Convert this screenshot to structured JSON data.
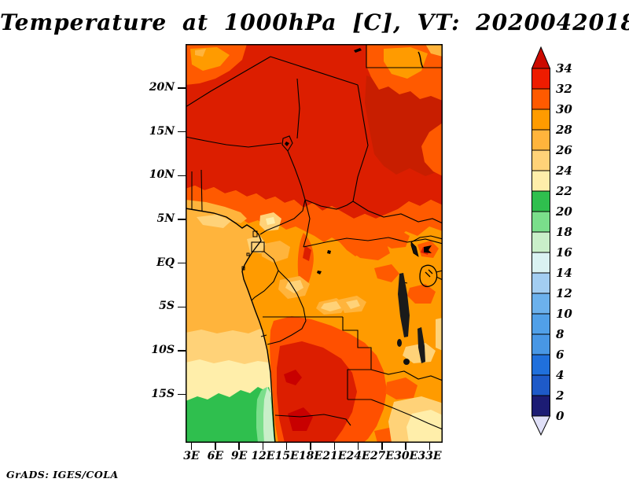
{
  "title": "Temperature at 1000hPa [C], VT: 2020042018",
  "attribution": "GrADS: IGES/COLA",
  "map": {
    "x_axis": {
      "tick_labels": [
        "3E",
        "6E",
        "9E",
        "12E",
        "15E",
        "18E",
        "21E",
        "24E",
        "27E",
        "30E",
        "33E"
      ]
    },
    "y_axis": {
      "tick_labels": [
        "20N",
        "15N",
        "10N",
        "5N",
        "EQ",
        "5S",
        "10S",
        "15S"
      ]
    }
  },
  "colorbar": {
    "labels_top_to_bottom": [
      "34",
      "32",
      "30",
      "28",
      "26",
      "24",
      "22",
      "20",
      "18",
      "16",
      "14",
      "12",
      "10",
      "8",
      "6",
      "4",
      "2",
      "0"
    ],
    "over_color": "#cc0a00",
    "under_color": "#e0e0f8",
    "box_colors_top_to_bottom": [
      "#ee1c00",
      "#ff5a00",
      "#ff9b00",
      "#ffb43c",
      "#ffd278",
      "#ffeeaa",
      "#2fbf4e",
      "#7ade8b",
      "#c9efc9",
      "#daf2f2",
      "#a3cdf1",
      "#6cb1ec",
      "#51a0e8",
      "#4897e5",
      "#2070dc",
      "#1e5ac8",
      "#1c1c74"
    ]
  },
  "chart_data": {
    "type": "heatmap",
    "title": "Temperature at 1000hPa [C], VT: 2020042018",
    "variable": "Temperature at 1000hPa",
    "units": "C",
    "valid_time": "2020042018",
    "renderer": "GrADS: IGES/COLA",
    "x_ticks": [
      "3E",
      "6E",
      "9E",
      "12E",
      "15E",
      "18E",
      "21E",
      "24E",
      "27E",
      "30E",
      "33E"
    ],
    "y_ticks": [
      "20N",
      "15N",
      "10N",
      "5N",
      "EQ",
      "5S",
      "10S",
      "15S"
    ],
    "colorbar_levels": [
      0,
      2,
      4,
      6,
      8,
      10,
      12,
      14,
      16,
      18,
      20,
      22,
      24,
      26,
      28,
      30,
      32,
      34
    ],
    "colorbar_colors_low_to_high": [
      "#e0e0f8",
      "#1c1c74",
      "#1e5ac8",
      "#2070dc",
      "#4897e5",
      "#51a0e8",
      "#6cb1ec",
      "#a3cdf1",
      "#daf2f2",
      "#c9efc9",
      "#7ade8b",
      "#2fbf4e",
      "#ffeeaa",
      "#ffd278",
      "#ffb43c",
      "#ff9b00",
      "#ff5a00",
      "#ee1c00",
      "#cc0a00"
    ],
    "legend_position": "right",
    "features": [
      "Sahel and Sahara belt north of ~6N shaded 32-34 C deep red with 30-32 C orange patches in NW and NE corners",
      "Transition band of 28-32 C across ~4-7N",
      "Congo basin mostly 28-30 C orange with scattered 26-28 and 30-32 C patches",
      "Hot 30-34 C red region over Angola extending to the southern map edge",
      "South Atlantic ocean cools southward: 26-28, 24-26, 22-24 C bands then 16-22 C greens in the SW corner",
      "East African lakes (Victoria, Tanganyika, Malawi) drawn as black outlines around 28-30 C field"
    ]
  }
}
